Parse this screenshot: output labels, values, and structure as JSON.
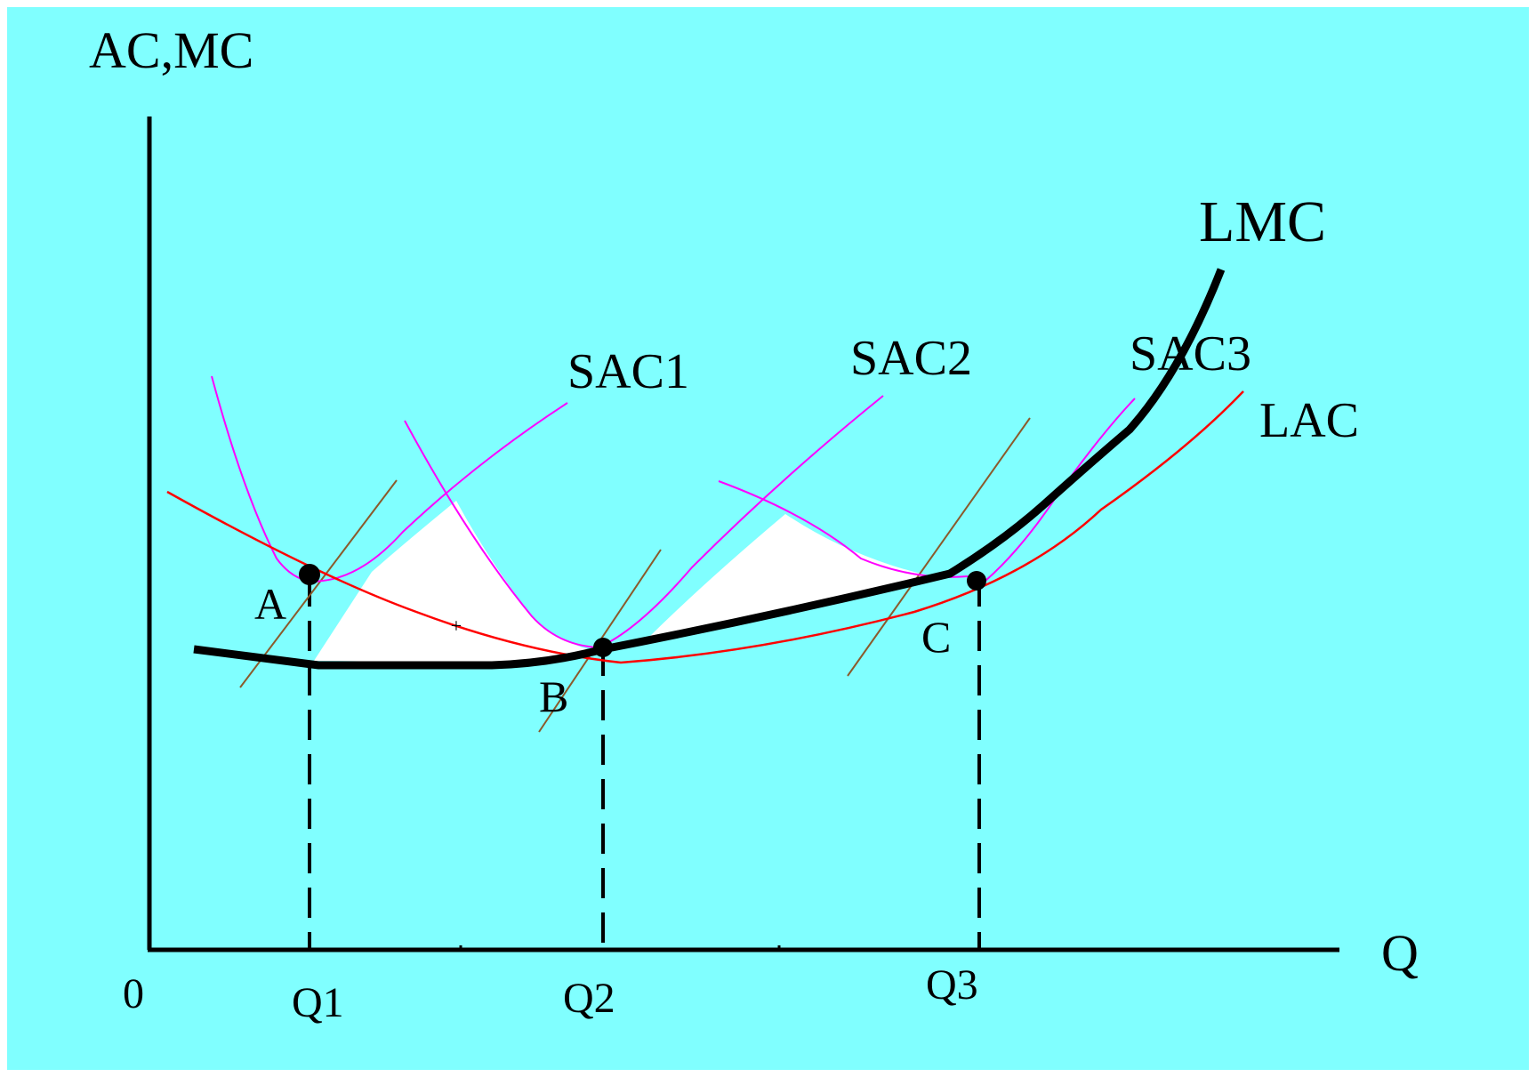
{
  "axes": {
    "y_label": "AC,MC",
    "x_label": "Q",
    "origin_label": "0"
  },
  "quantities": {
    "q1": "Q1",
    "q2": "Q2",
    "q3": "Q3"
  },
  "points": {
    "a": "A",
    "b": "B",
    "c": "C"
  },
  "curves": {
    "lmc": "LMC",
    "lac": "LAC",
    "sac1": "SAC1",
    "sac2": "SAC2",
    "sac3": "SAC3"
  },
  "colors": {
    "background": "#80ffff",
    "lmc": "#000000",
    "lac": "#ff0000",
    "sac": "#ff00ff",
    "smc": "#8b5a2b",
    "shaded_region": "#ffffff"
  }
}
